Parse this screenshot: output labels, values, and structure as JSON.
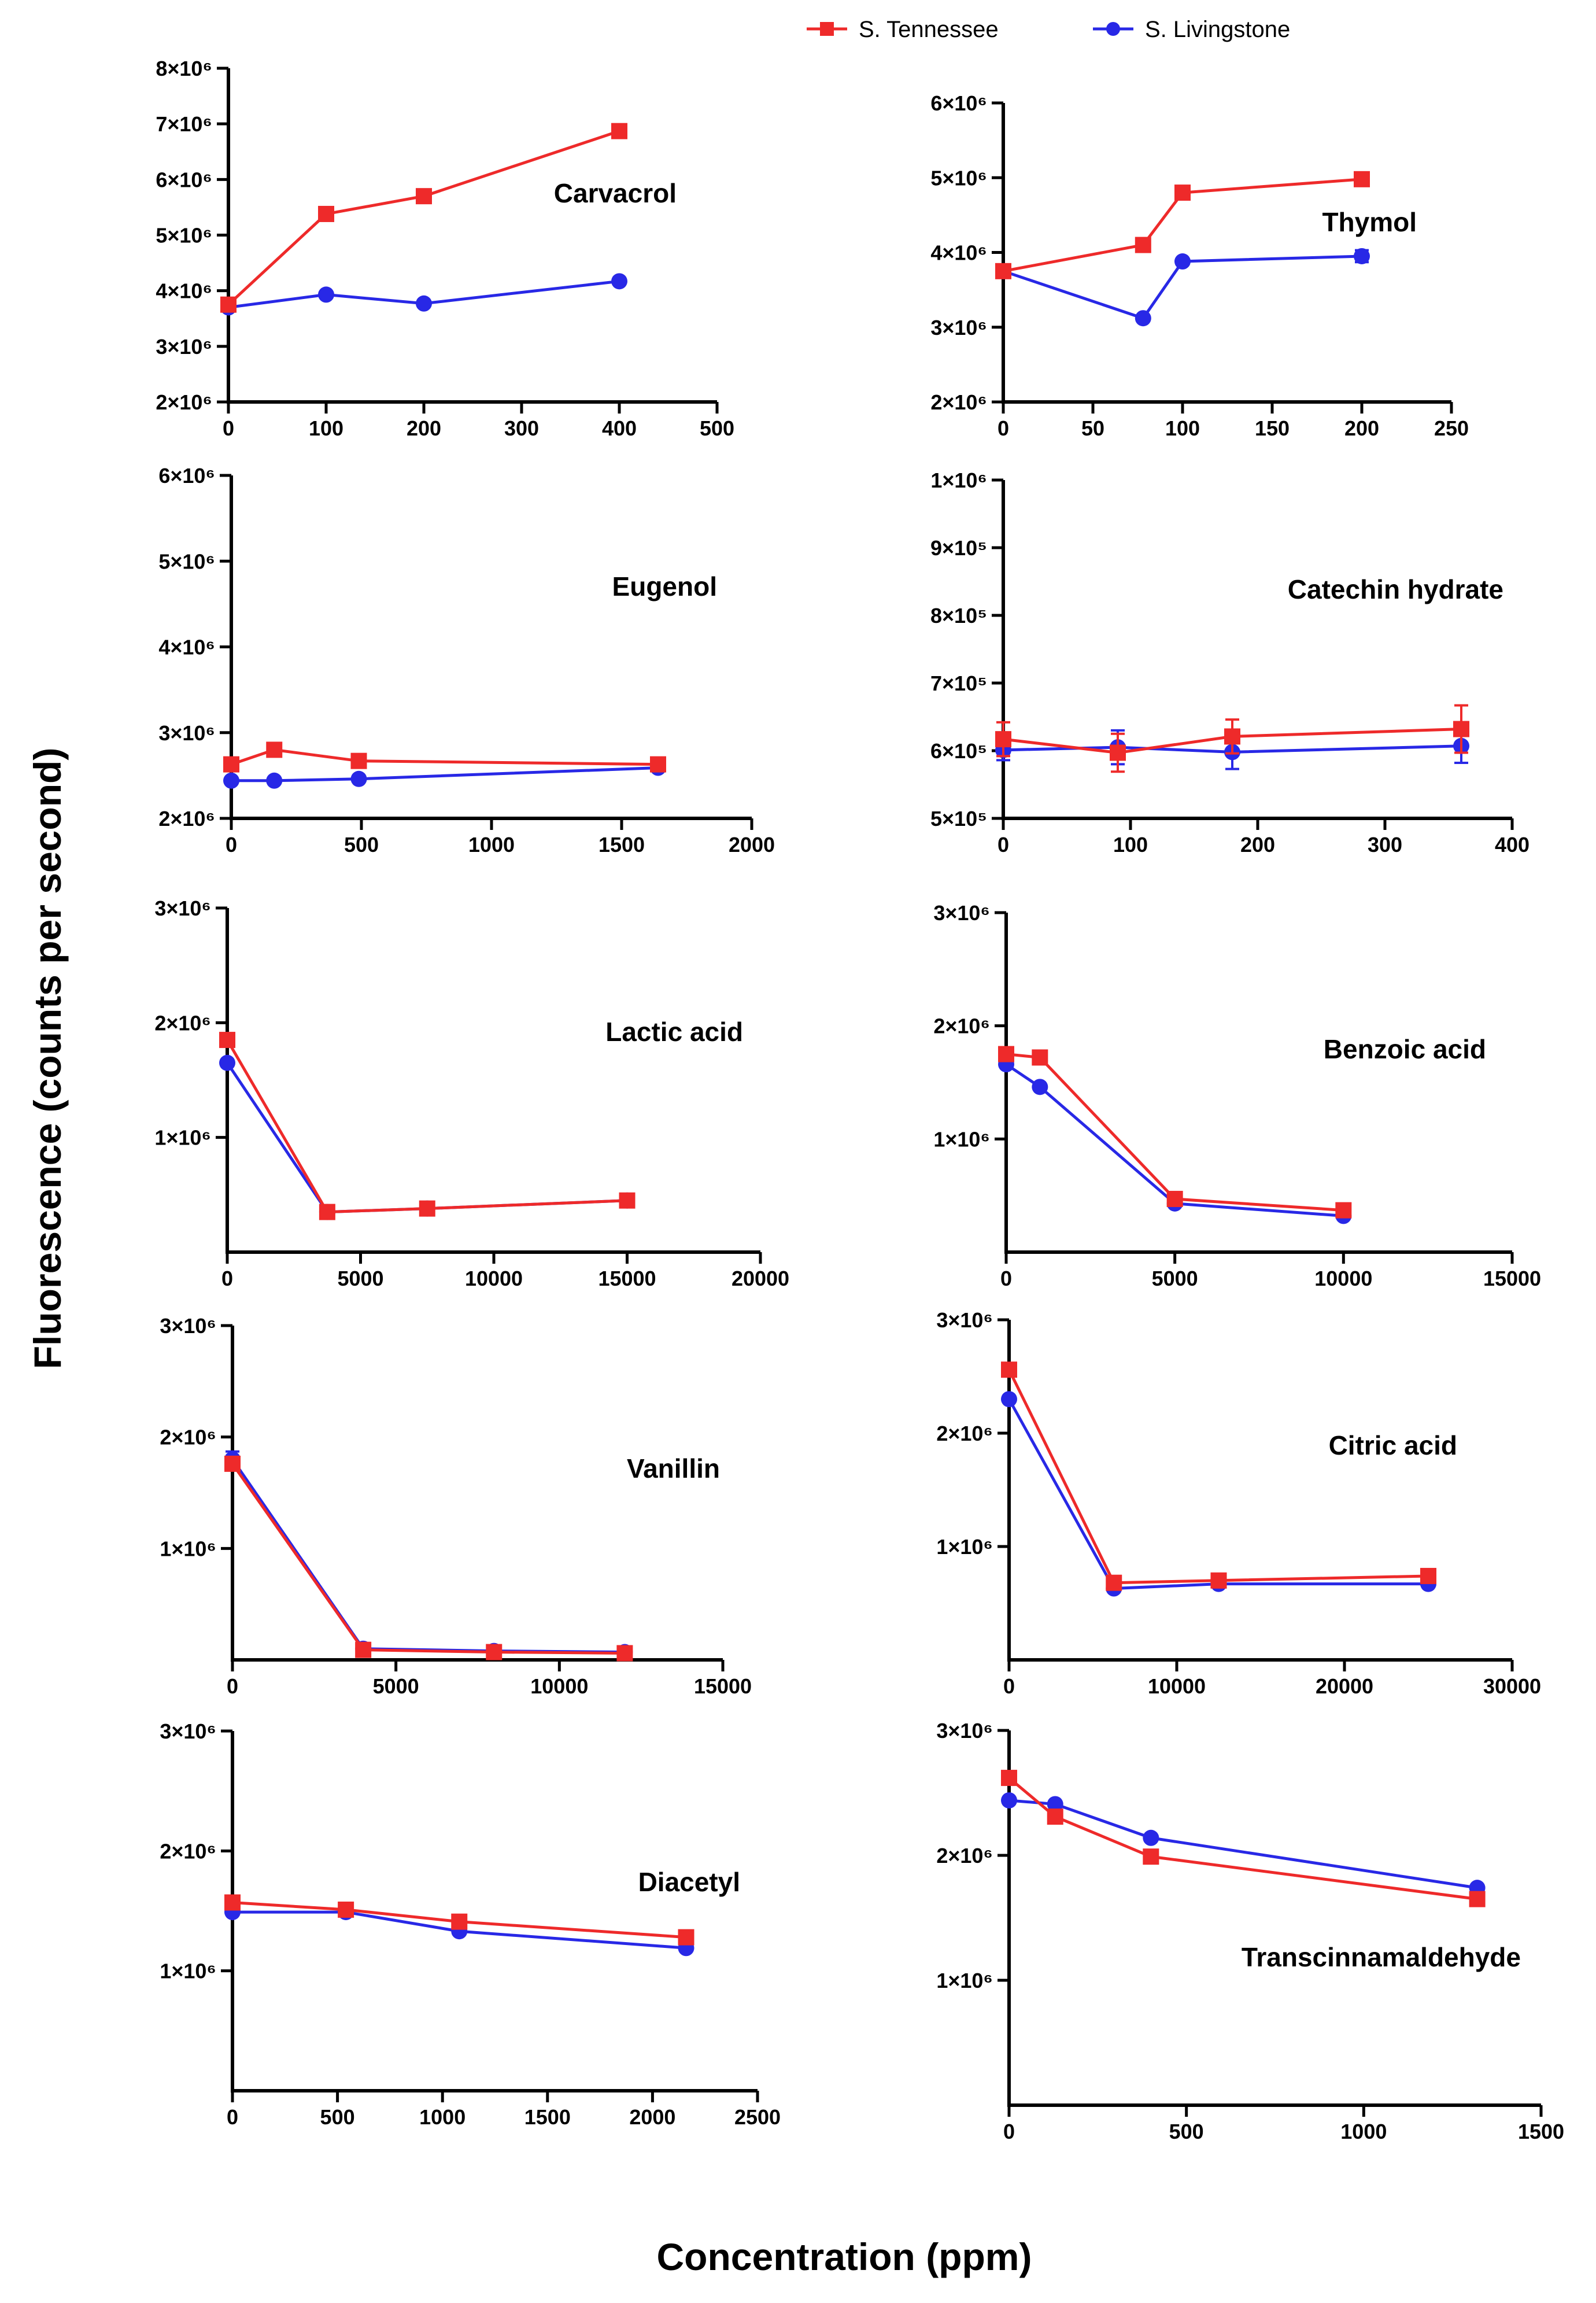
{
  "figure": {
    "ylabel": "Fluorescence (counts per second)",
    "xlabel": "Concentration (ppm)"
  },
  "legend": [
    {
      "name": "S. Tennessee",
      "color": "#ee2a2a",
      "marker": "square"
    },
    {
      "name": "S. Livingstone",
      "color": "#2828e6",
      "marker": "circle"
    }
  ],
  "chart_data": [
    {
      "type": "line",
      "title": "Carvacrol",
      "xlim": [
        0,
        500
      ],
      "xticks": [
        0,
        100,
        200,
        300,
        400,
        500
      ],
      "ylim": [
        2000000,
        8000000
      ],
      "yticks": [
        2000000,
        3000000,
        4000000,
        5000000,
        6000000,
        7000000,
        8000000
      ],
      "yticklabels": [
        "2×10⁶",
        "3×10⁶",
        "4×10⁶",
        "5×10⁶",
        "6×10⁶",
        "7×10⁶",
        "8×10⁶"
      ],
      "series": [
        {
          "name": "S. Tennessee",
          "x": [
            0,
            100,
            200,
            400
          ],
          "y": [
            3750000,
            5380000,
            5700000,
            6870000
          ]
        },
        {
          "name": "S. Livingstone",
          "x": [
            0,
            100,
            200,
            400
          ],
          "y": [
            3700000,
            3930000,
            3770000,
            4170000
          ]
        }
      ]
    },
    {
      "type": "line",
      "title": "Thymol",
      "xlim": [
        0,
        250
      ],
      "xticks": [
        0,
        50,
        100,
        150,
        200,
        250
      ],
      "ylim": [
        2000000,
        6000000
      ],
      "yticks": [
        2000000,
        3000000,
        4000000,
        5000000,
        6000000
      ],
      "yticklabels": [
        "2×10⁶",
        "3×10⁶",
        "4×10⁶",
        "5×10⁶",
        "6×10⁶"
      ],
      "series": [
        {
          "name": "S. Tennessee",
          "x": [
            0,
            78,
            100,
            200
          ],
          "y": [
            3750000,
            4100000,
            4800000,
            4980000
          ],
          "err": [
            40000,
            40000,
            40000,
            90000
          ]
        },
        {
          "name": "S. Livingstone",
          "x": [
            0,
            78,
            100,
            200
          ],
          "y": [
            3750000,
            3120000,
            3880000,
            3950000
          ],
          "err": [
            30000,
            30000,
            30000,
            80000
          ]
        }
      ]
    },
    {
      "type": "line",
      "title": "Eugenol",
      "xlim": [
        0,
        2000
      ],
      "xticks": [
        0,
        500,
        1000,
        1500,
        2000
      ],
      "ylim": [
        2000000,
        6000000
      ],
      "yticks": [
        2000000,
        3000000,
        4000000,
        5000000,
        6000000
      ],
      "yticklabels": [
        "2×10⁶",
        "3×10⁶",
        "4×10⁶",
        "5×10⁶",
        "6×10⁶"
      ],
      "series": [
        {
          "name": "S. Tennessee",
          "x": [
            0,
            165,
            490,
            1640
          ],
          "y": [
            2630000,
            2800000,
            2670000,
            2630000
          ]
        },
        {
          "name": "S. Livingstone",
          "x": [
            0,
            165,
            490,
            1640
          ],
          "y": [
            2440000,
            2440000,
            2460000,
            2590000
          ]
        }
      ]
    },
    {
      "type": "line",
      "title": "Catechin hydrate",
      "xlim": [
        0,
        400
      ],
      "xticks": [
        0,
        100,
        200,
        300,
        400
      ],
      "ylim": [
        500000,
        1000000
      ],
      "yticks": [
        500000,
        600000,
        700000,
        800000,
        900000,
        1000000
      ],
      "yticklabels": [
        "5×10⁵",
        "6×10⁵",
        "7×10⁵",
        "8×10⁵",
        "9×10⁵",
        "1×10⁶"
      ],
      "series": [
        {
          "name": "S. Tennessee",
          "x": [
            0,
            90,
            180,
            360
          ],
          "y": [
            617000,
            597000,
            621000,
            632000
          ],
          "err": [
            25000,
            28000,
            25000,
            35000
          ]
        },
        {
          "name": "S. Livingstone",
          "x": [
            0,
            90,
            180,
            360
          ],
          "y": [
            601000,
            605000,
            598000,
            607000
          ],
          "err": [
            15000,
            25000,
            25000,
            25000
          ]
        }
      ]
    },
    {
      "type": "line",
      "title": "Lactic acid",
      "xlim": [
        0,
        20000
      ],
      "xticks": [
        0,
        5000,
        10000,
        15000,
        20000
      ],
      "ylim": [
        0,
        3000000
      ],
      "yticks": [
        1000000,
        2000000,
        3000000
      ],
      "yticklabels": [
        "1×10⁶",
        "2×10⁶",
        "3×10⁶"
      ],
      "series": [
        {
          "name": "S. Tennessee",
          "x": [
            0,
            3750,
            7500,
            15000
          ],
          "y": [
            1850000,
            350000,
            380000,
            450000
          ]
        },
        {
          "name": "S. Livingstone",
          "x": [
            0,
            3750,
            7500,
            15000
          ],
          "y": [
            1650000,
            350000,
            380000,
            450000
          ]
        }
      ]
    },
    {
      "type": "line",
      "title": "Benzoic acid",
      "xlim": [
        0,
        15000
      ],
      "xticks": [
        0,
        5000,
        10000,
        15000
      ],
      "ylim": [
        0,
        3000000
      ],
      "yticks": [
        1000000,
        2000000,
        3000000
      ],
      "yticklabels": [
        "1×10⁶",
        "2×10⁶",
        "3×10⁶"
      ],
      "series": [
        {
          "name": "S. Tennessee",
          "x": [
            0,
            1000,
            5000,
            10000
          ],
          "y": [
            1750000,
            1720000,
            470000,
            370000
          ]
        },
        {
          "name": "S. Livingstone",
          "x": [
            0,
            1000,
            5000,
            10000
          ],
          "y": [
            1660000,
            1460000,
            430000,
            320000
          ]
        }
      ]
    },
    {
      "type": "line",
      "title": "Vanillin",
      "xlim": [
        0,
        15000
      ],
      "xticks": [
        0,
        5000,
        10000,
        15000
      ],
      "ylim": [
        0,
        3000000
      ],
      "yticks": [
        1000000,
        2000000,
        3000000
      ],
      "yticklabels": [
        "1×10⁶",
        "2×10⁶",
        "3×10⁶"
      ],
      "series": [
        {
          "name": "S. Tennessee",
          "x": [
            0,
            4000,
            8000,
            12000
          ],
          "y": [
            1760000,
            90000,
            70000,
            60000
          ]
        },
        {
          "name": "S. Livingstone",
          "x": [
            0,
            4000,
            8000,
            12000
          ],
          "y": [
            1800000,
            100000,
            80000,
            70000
          ],
          "err": [
            70000,
            0,
            0,
            0
          ]
        }
      ]
    },
    {
      "type": "line",
      "title": "Citric acid",
      "xlim": [
        0,
        30000
      ],
      "xticks": [
        0,
        10000,
        20000,
        30000
      ],
      "ylim": [
        0,
        3000000
      ],
      "yticks": [
        1000000,
        2000000,
        3000000
      ],
      "yticklabels": [
        "1×10⁶",
        "2×10⁶",
        "3×10⁶"
      ],
      "series": [
        {
          "name": "S. Tennessee",
          "x": [
            0,
            6250,
            12500,
            25000
          ],
          "y": [
            2560000,
            680000,
            700000,
            740000
          ]
        },
        {
          "name": "S. Livingstone",
          "x": [
            0,
            6250,
            12500,
            25000
          ],
          "y": [
            2300000,
            630000,
            670000,
            670000
          ]
        }
      ]
    },
    {
      "type": "line",
      "title": "Diacetyl",
      "xlim": [
        0,
        2500
      ],
      "xticks": [
        0,
        500,
        1000,
        1500,
        2000,
        2500
      ],
      "ylim": [
        0,
        3000000
      ],
      "yticks": [
        1000000,
        2000000,
        3000000
      ],
      "yticklabels": [
        "1×10⁶",
        "2×10⁶",
        "3×10⁶"
      ],
      "series": [
        {
          "name": "S. Tennessee",
          "x": [
            0,
            540,
            1080,
            2160
          ],
          "y": [
            1570000,
            1510000,
            1410000,
            1280000
          ]
        },
        {
          "name": "S. Livingstone",
          "x": [
            0,
            540,
            1080,
            2160
          ],
          "y": [
            1490000,
            1490000,
            1330000,
            1190000
          ]
        }
      ]
    },
    {
      "type": "line",
      "title": "Transcinnamaldehyde",
      "xlim": [
        0,
        1500
      ],
      "xticks": [
        0,
        500,
        1000,
        1500
      ],
      "ylim": [
        0,
        3000000
      ],
      "yticks": [
        1000000,
        2000000,
        3000000
      ],
      "yticklabels": [
        "1×10⁶",
        "2×10⁶",
        "3×10⁶"
      ],
      "series": [
        {
          "name": "S. Tennessee",
          "x": [
            0,
            130,
            400,
            1320
          ],
          "y": [
            2620000,
            2310000,
            1990000,
            1650000
          ]
        },
        {
          "name": "S. Livingstone",
          "x": [
            0,
            130,
            400,
            1320
          ],
          "y": [
            2440000,
            2410000,
            2140000,
            1740000
          ]
        }
      ]
    }
  ]
}
